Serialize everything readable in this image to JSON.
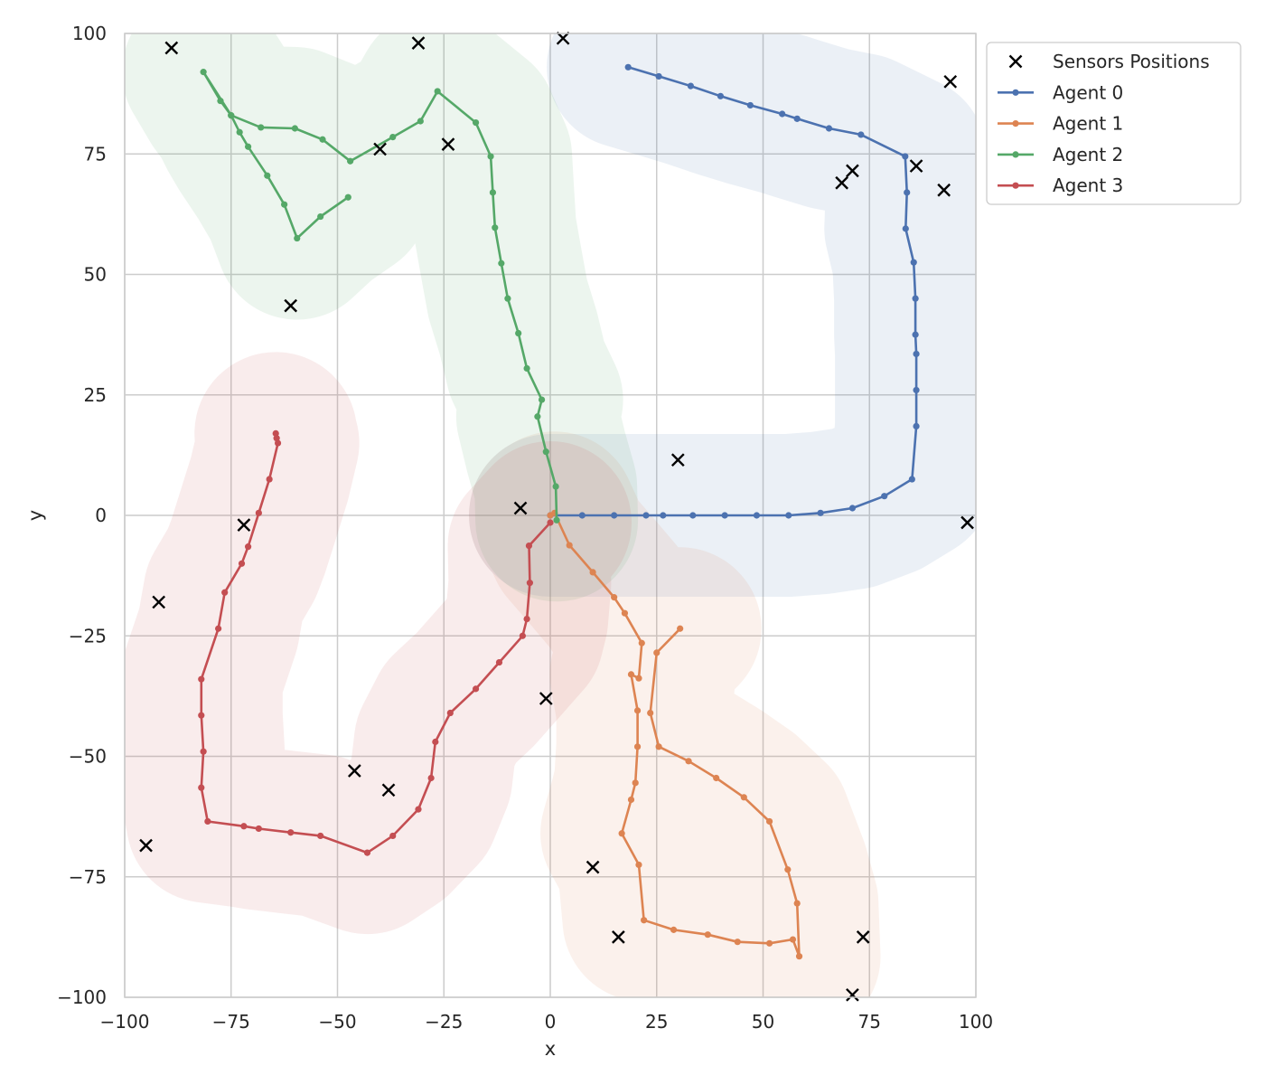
{
  "chart_data": {
    "type": "line",
    "title": "",
    "xlabel": "x",
    "ylabel": "y",
    "xlim": [
      -100,
      100
    ],
    "ylim": [
      -100,
      100
    ],
    "xticks": [
      -100,
      -75,
      -50,
      -25,
      0,
      25,
      50,
      75,
      100
    ],
    "yticks": [
      -100,
      -75,
      -50,
      -25,
      0,
      25,
      50,
      75,
      100
    ],
    "xtick_labels": [
      "−100",
      "−75",
      "−50",
      "−25",
      "0",
      "25",
      "50",
      "75",
      "100"
    ],
    "ytick_labels": [
      "−100",
      "−75",
      "−50",
      "−25",
      "0",
      "25",
      "50",
      "75",
      "100"
    ],
    "grid": true,
    "legend": "outside-top-right",
    "legend_order": [
      "Sensors Positions",
      "Agent 0",
      "Agent 1",
      "Agent 2",
      "Agent 3"
    ],
    "sensors": {
      "name": "Sensors Positions",
      "marker": "x",
      "color": "#000000",
      "points": [
        [
          -89,
          97
        ],
        [
          -31,
          98
        ],
        [
          3,
          99
        ],
        [
          94,
          90
        ],
        [
          71,
          71.5
        ],
        [
          68.5,
          69
        ],
        [
          86,
          72.5
        ],
        [
          92.5,
          67.5
        ],
        [
          -40,
          76
        ],
        [
          -24,
          77
        ],
        [
          -61,
          43.5
        ],
        [
          30,
          11.5
        ],
        [
          -7,
          1.5
        ],
        [
          -72,
          -2
        ],
        [
          98,
          -1.5
        ],
        [
          -92,
          -18
        ],
        [
          -1,
          -38
        ],
        [
          -46,
          -53
        ],
        [
          -38,
          -57
        ],
        [
          -95,
          -68.5
        ],
        [
          10,
          -73
        ],
        [
          16,
          -87.5
        ],
        [
          73.5,
          -87.5
        ],
        [
          71,
          -99.5
        ]
      ]
    },
    "series": [
      {
        "name": "Agent 0",
        "color": "#4c72b0",
        "points": [
          [
            0,
            0
          ],
          [
            7.5,
            0
          ],
          [
            15,
            0
          ],
          [
            22.5,
            0
          ],
          [
            26.5,
            0
          ],
          [
            33.5,
            0
          ],
          [
            41,
            0
          ],
          [
            48.5,
            0
          ],
          [
            56,
            0
          ],
          [
            63.5,
            0.5
          ],
          [
            71,
            1.5
          ],
          [
            78.5,
            4
          ],
          [
            85,
            7.5
          ],
          [
            86,
            18.5
          ],
          [
            86,
            26
          ],
          [
            86,
            33.5
          ],
          [
            85.8,
            37.5
          ],
          [
            85.8,
            45
          ],
          [
            85.4,
            52.5
          ],
          [
            83.5,
            59.5
          ],
          [
            83.8,
            67
          ],
          [
            83.4,
            74.5
          ],
          [
            73,
            79
          ],
          [
            65.5,
            80.3
          ],
          [
            58,
            82.3
          ],
          [
            54.5,
            83.3
          ],
          [
            47,
            85.1
          ],
          [
            40,
            87
          ],
          [
            33,
            89.1
          ],
          [
            25.5,
            91.1
          ],
          [
            18.3,
            93
          ]
        ]
      },
      {
        "name": "Agent 1",
        "color": "#dd8452",
        "points": [
          [
            0,
            0
          ],
          [
            1,
            0.5
          ],
          [
            4.5,
            -6.2
          ],
          [
            10,
            -11.8
          ],
          [
            15,
            -17
          ],
          [
            17.5,
            -20.3
          ],
          [
            21.5,
            -26.5
          ],
          [
            20.8,
            -33.8
          ],
          [
            19,
            -33
          ],
          [
            20.5,
            -40.5
          ],
          [
            20.5,
            -48
          ],
          [
            20,
            -55.5
          ],
          [
            19,
            -59
          ],
          [
            16.8,
            -66
          ],
          [
            20.8,
            -72.5
          ],
          [
            22,
            -84
          ],
          [
            29,
            -86
          ],
          [
            37,
            -87
          ],
          [
            44,
            -88.5
          ],
          [
            51.5,
            -88.8
          ],
          [
            57,
            -88
          ],
          [
            58.5,
            -91.5
          ],
          [
            58,
            -80.5
          ],
          [
            55.8,
            -73.5
          ],
          [
            51.5,
            -63.5
          ],
          [
            45.5,
            -58.5
          ],
          [
            39,
            -54.5
          ],
          [
            32.5,
            -51
          ],
          [
            25.5,
            -48
          ],
          [
            23.5,
            -41
          ],
          [
            25,
            -28.5
          ],
          [
            30.5,
            -23.5
          ]
        ]
      },
      {
        "name": "Agent 2",
        "color": "#55a868",
        "points": [
          [
            1.5,
            -1
          ],
          [
            1.3,
            6
          ],
          [
            -1,
            13.2
          ],
          [
            -3,
            20.5
          ],
          [
            -2,
            24
          ],
          [
            -5.5,
            30.5
          ],
          [
            -7.5,
            37.8
          ],
          [
            -10,
            45
          ],
          [
            -11.5,
            52.3
          ],
          [
            -13,
            59.7
          ],
          [
            -13.5,
            67
          ],
          [
            -14,
            74.5
          ],
          [
            -17.5,
            81.5
          ],
          [
            -26.5,
            88
          ],
          [
            -30.5,
            81.8
          ],
          [
            -37,
            78.5
          ],
          [
            -47,
            73.5
          ],
          [
            -53.5,
            78
          ],
          [
            -60,
            80.3
          ],
          [
            -68,
            80.5
          ],
          [
            -75,
            83
          ],
          [
            -77.5,
            86
          ],
          [
            -81.5,
            92
          ],
          [
            -75,
            83
          ],
          [
            -73,
            79.5
          ],
          [
            -71,
            76.5
          ],
          [
            -66.5,
            70.5
          ],
          [
            -62.5,
            64.5
          ],
          [
            -59.5,
            57.5
          ],
          [
            -54,
            62
          ],
          [
            -47.5,
            66
          ]
        ]
      },
      {
        "name": "Agent 3",
        "color": "#c44e52",
        "points": [
          [
            0,
            -1.5
          ],
          [
            -5,
            -6.3
          ],
          [
            -4.8,
            -14
          ],
          [
            -5.5,
            -21.5
          ],
          [
            -6.5,
            -25
          ],
          [
            -12,
            -30.5
          ],
          [
            -17.5,
            -36
          ],
          [
            -23.5,
            -41
          ],
          [
            -27,
            -47
          ],
          [
            -28,
            -54.5
          ],
          [
            -31,
            -61
          ],
          [
            -37,
            -66.5
          ],
          [
            -43,
            -70
          ],
          [
            -54,
            -66.5
          ],
          [
            -61,
            -65.8
          ],
          [
            -68.5,
            -65
          ],
          [
            -72,
            -64.5
          ],
          [
            -80.5,
            -63.5
          ],
          [
            -82,
            -56.5
          ],
          [
            -81.5,
            -49
          ],
          [
            -82,
            -41.5
          ],
          [
            -82,
            -34
          ],
          [
            -78,
            -23.5
          ],
          [
            -76.5,
            -16
          ],
          [
            -72.5,
            -10
          ],
          [
            -71,
            -6.5
          ],
          [
            -68.5,
            0.5
          ],
          [
            -66,
            7.5
          ],
          [
            -64,
            15
          ],
          [
            -64.3,
            16
          ],
          [
            -64.5,
            17
          ]
        ]
      }
    ]
  }
}
